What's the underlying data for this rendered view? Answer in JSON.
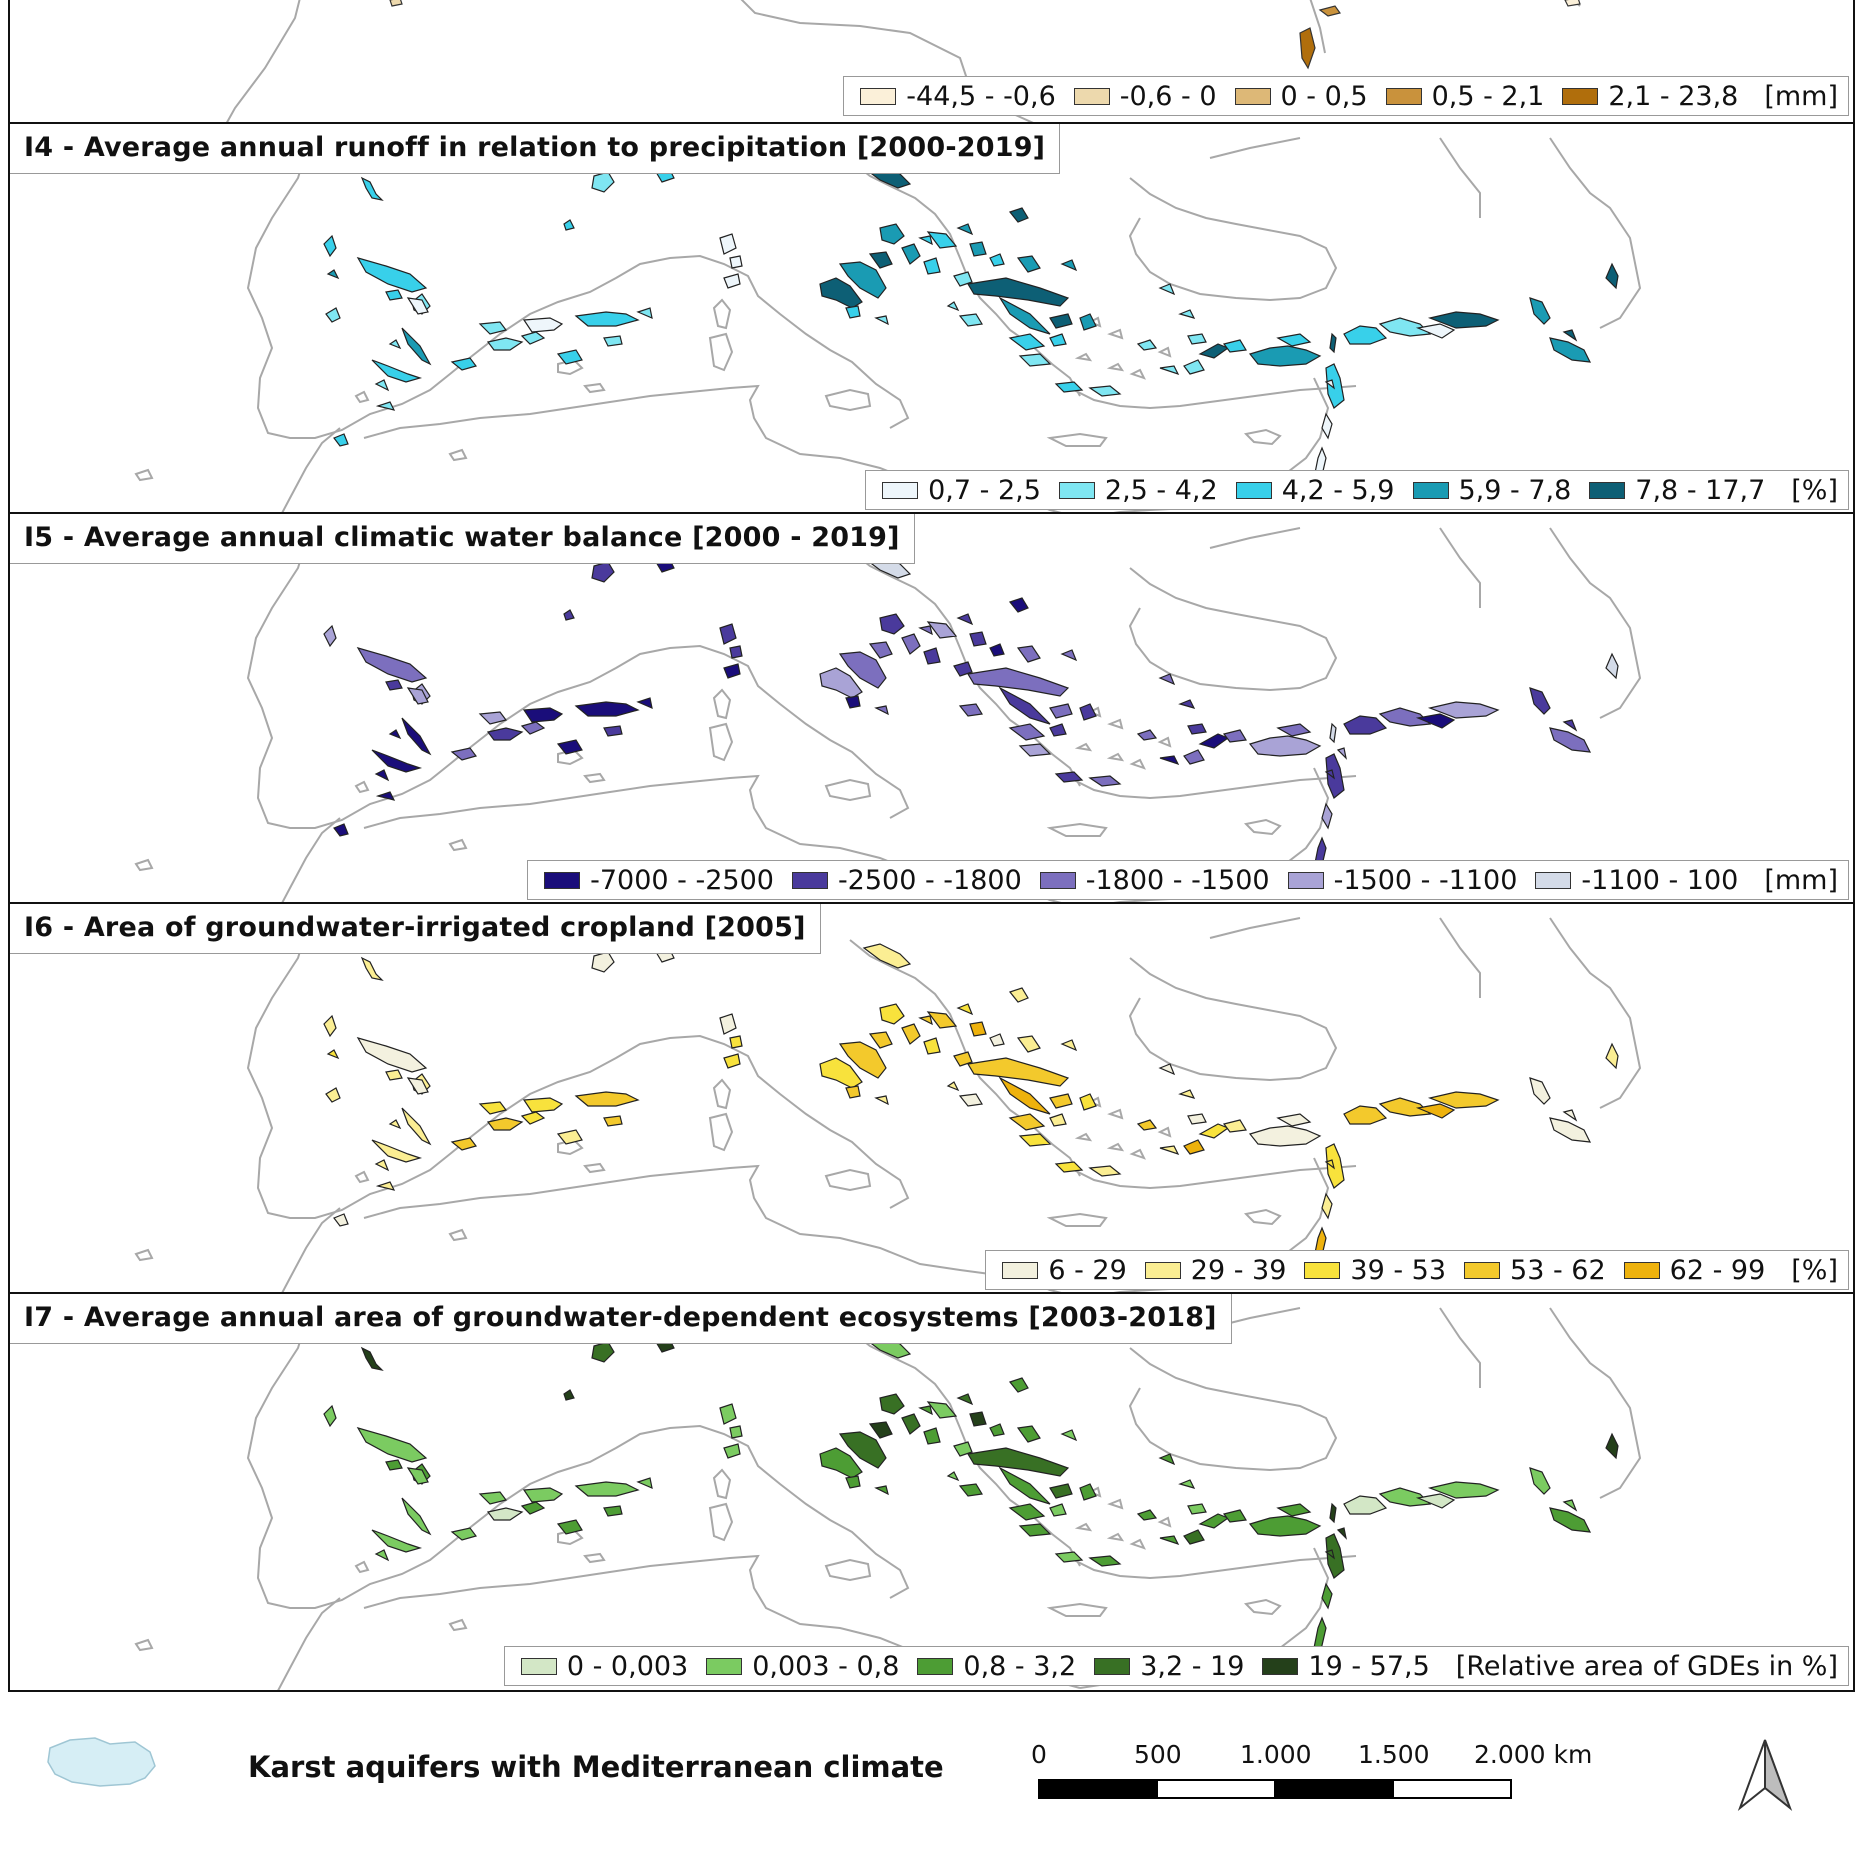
{
  "panels": [
    {
      "id": "I3",
      "title": "",
      "legend": {
        "classes": [
          {
            "label": "-44,5 - -0,6",
            "color": "#fbf0d9"
          },
          {
            "label": "-0,6 - 0",
            "color": "#edd9ad"
          },
          {
            "label": "0 - 0,5",
            "color": "#ddb877"
          },
          {
            "label": "0,5 - 2,1",
            "color": "#c9923c"
          },
          {
            "label": "2,1 - 23,8",
            "color": "#b06e0c"
          }
        ],
        "unit": "[mm]"
      }
    },
    {
      "id": "I4",
      "title": "I4 - Average annual runoff in relation to precipitation [2000-2019]",
      "legend": {
        "classes": [
          {
            "label": "0,7 - 2,5",
            "color": "#eef6fb"
          },
          {
            "label": "2,5 - 4,2",
            "color": "#7fe6f2"
          },
          {
            "label": "4,2 - 5,9",
            "color": "#38d0ea"
          },
          {
            "label": "5,9 - 7,8",
            "color": "#1a9bb3"
          },
          {
            "label": "7,8 - 17,7",
            "color": "#0d5f75"
          }
        ],
        "unit": "[%]"
      }
    },
    {
      "id": "I5",
      "title": "I5 - Average annual climatic water balance [2000 - 2019]",
      "legend": {
        "classes": [
          {
            "label": "-7000 - -2500",
            "color": "#1a0d7a"
          },
          {
            "label": "-2500 - -1800",
            "color": "#4a3a9c"
          },
          {
            "label": "-1800 - -1500",
            "color": "#7c6fbe"
          },
          {
            "label": "-1500 - -1100",
            "color": "#a9a3d6"
          },
          {
            "label": "-1100 - 100",
            "color": "#d4dbe8"
          }
        ],
        "unit": "[mm]"
      }
    },
    {
      "id": "I6",
      "title": "I6 - Area of groundwater-irrigated cropland [2005]",
      "legend": {
        "classes": [
          {
            "label": "6 - 29",
            "color": "#f3f1df"
          },
          {
            "label": "29 - 39",
            "color": "#fbee93"
          },
          {
            "label": "39 - 53",
            "color": "#f8e23c"
          },
          {
            "label": "53 - 62",
            "color": "#f3c92c"
          },
          {
            "label": "62 - 99",
            "color": "#eeb20d"
          }
        ],
        "unit": "[%]"
      }
    },
    {
      "id": "I7",
      "title": "I7 - Average annual area of groundwater-dependent ecosystems [2003-2018]",
      "legend": {
        "classes": [
          {
            "label": "0 - 0,003",
            "color": "#d3e7c6"
          },
          {
            "label": "0,003 - 0,8",
            "color": "#7bcb61"
          },
          {
            "label": "0,8 - 3,2",
            "color": "#4d9d34"
          },
          {
            "label": "3,2 - 19",
            "color": "#387024"
          },
          {
            "label": "19 - 57,5",
            "color": "#24401a"
          }
        ],
        "unit": "[Relative area of GDEs in %]"
      }
    }
  ],
  "footer": {
    "legend_title": "Karst aquifers with Mediterranean climate",
    "legend_swatch_color": "#d6eef5",
    "scalebar_labels": [
      "0",
      "500",
      "1.000",
      "1.500",
      "2.000 km"
    ],
    "north_arrow": "north-arrow-icon"
  }
}
